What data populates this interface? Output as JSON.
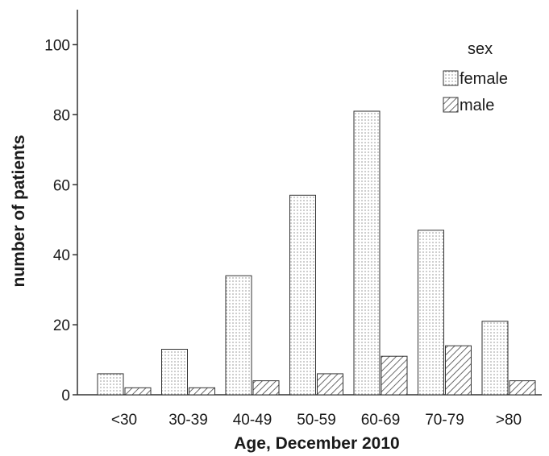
{
  "chart_data": {
    "type": "bar",
    "categories": [
      "<30",
      "30-39",
      "40-49",
      "50-59",
      "60-69",
      "70-79",
      ">80"
    ],
    "series": [
      {
        "name": "female",
        "values": [
          6,
          13,
          34,
          57,
          81,
          47,
          21
        ],
        "pattern": "dots"
      },
      {
        "name": "male",
        "values": [
          2,
          2,
          4,
          6,
          11,
          14,
          4
        ],
        "pattern": "diagonal-hatch"
      }
    ],
    "title": "",
    "xlabel": "Age, December 2010",
    "ylabel": "number of patients",
    "ylim": [
      0,
      110
    ],
    "yticks": [
      0,
      20,
      40,
      60,
      80,
      100
    ],
    "legend": {
      "title": "sex",
      "position": "top-right"
    },
    "grid": false,
    "colors": {
      "bar_fill": "#ffffff",
      "bar_stroke": "#333333",
      "pattern": "#555555",
      "axis": "#333333"
    }
  }
}
